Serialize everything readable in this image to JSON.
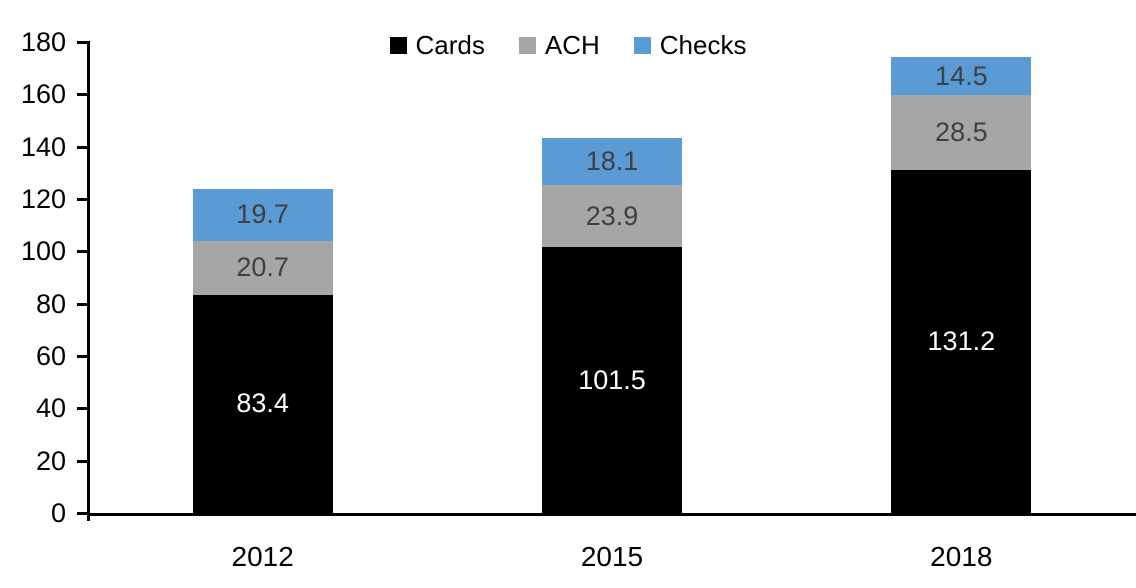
{
  "chart_data": {
    "type": "bar",
    "stacked": true,
    "title": "",
    "xlabel": "",
    "ylabel": "",
    "categories": [
      "2012",
      "2015",
      "2018"
    ],
    "series": [
      {
        "name": "Cards",
        "color": "#000000",
        "label_color": "#ffffff",
        "values": [
          83.4,
          101.5,
          131.2
        ]
      },
      {
        "name": "ACH",
        "color": "#a6a6a6",
        "label_color": "#404040",
        "values": [
          20.7,
          23.9,
          28.5
        ]
      },
      {
        "name": "Checks",
        "color": "#5b9bd5",
        "label_color": "#404040",
        "values": [
          19.7,
          18.1,
          14.5
        ]
      }
    ],
    "ylim": [
      0,
      180
    ],
    "ytick_step": 20,
    "ytick_labels": [
      "0",
      "20",
      "40",
      "60",
      "80",
      "100",
      "120",
      "140",
      "160",
      "180"
    ],
    "legend_position": "top-center",
    "grid": false,
    "axis_color": "#000000",
    "background_color": "#ffffff"
  }
}
